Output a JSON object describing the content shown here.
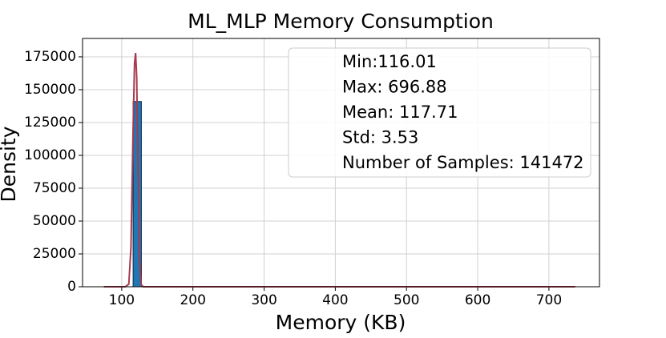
{
  "chart_data": {
    "type": "histogram",
    "title": "ML_MLP Memory Consumption",
    "x_label": "Memory (KB)",
    "y_label": "Density",
    "bins": [
      116.01,
      127.63,
      139.24,
      150.86,
      162.48,
      174.1,
      185.71,
      197.33,
      208.95,
      220.57,
      232.18,
      243.8,
      255.42,
      267.04,
      278.65,
      290.27,
      301.89,
      313.51,
      325.12,
      336.74,
      348.36,
      359.98,
      371.59,
      383.21,
      394.83,
      406.45,
      418.06,
      429.68,
      441.3,
      452.92,
      464.53,
      476.15,
      487.77,
      499.39,
      511.0,
      522.62,
      534.24,
      545.86,
      557.47,
      569.09,
      580.71,
      592.33,
      603.94,
      615.56,
      627.18,
      638.8,
      650.41,
      662.03,
      673.65,
      685.27,
      696.88
    ],
    "values": [
      141000,
      0,
      0,
      0,
      0,
      0,
      0,
      0,
      0,
      0,
      0,
      0,
      0,
      0,
      0,
      0,
      0,
      0,
      0,
      0,
      0,
      0,
      0,
      0,
      0,
      0,
      0,
      0,
      0,
      0,
      0,
      0,
      0,
      0,
      0,
      0,
      0,
      0,
      0,
      0,
      0,
      0,
      0,
      0,
      0,
      0,
      0,
      0,
      0,
      0
    ],
    "color": "#1f77b4",
    "kde": {
      "x": [
        75,
        105,
        110,
        113,
        116,
        118,
        119.5,
        121,
        123,
        125,
        127,
        130,
        737
      ],
      "values": [
        0,
        0,
        2000,
        30000,
        120000,
        170000,
        178000,
        160000,
        90000,
        20000,
        2000,
        0,
        0
      ],
      "color": "#a83a4e"
    },
    "annotations": [
      "Min:116.01",
      "Max: 696.88",
      "Mean: 117.71",
      "Std: 3.53",
      "Number of Samples: 141472"
    ],
    "xlim": [
      45,
      771
    ],
    "ylim": [
      0,
      189000
    ],
    "xticks": [
      100,
      200,
      300,
      400,
      500,
      600,
      700
    ],
    "yticks": [
      0,
      25000,
      50000,
      75000,
      100000,
      125000,
      150000,
      175000
    ],
    "grid": true
  }
}
